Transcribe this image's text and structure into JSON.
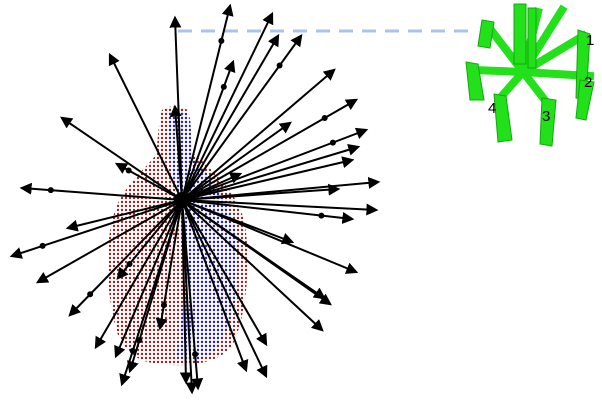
{
  "gripper": {
    "finger_labels": [
      "1",
      "2",
      "3",
      "4"
    ]
  },
  "colors": {
    "background": "#ffffff",
    "point_cloud_red": "#8a1a1a",
    "point_cloud_blue": "#1f2aa8",
    "arrows": "#000000",
    "gripper": "#22e01a",
    "gripper_dark": "#14a80f",
    "dashed_link": "#a9c4e8"
  }
}
